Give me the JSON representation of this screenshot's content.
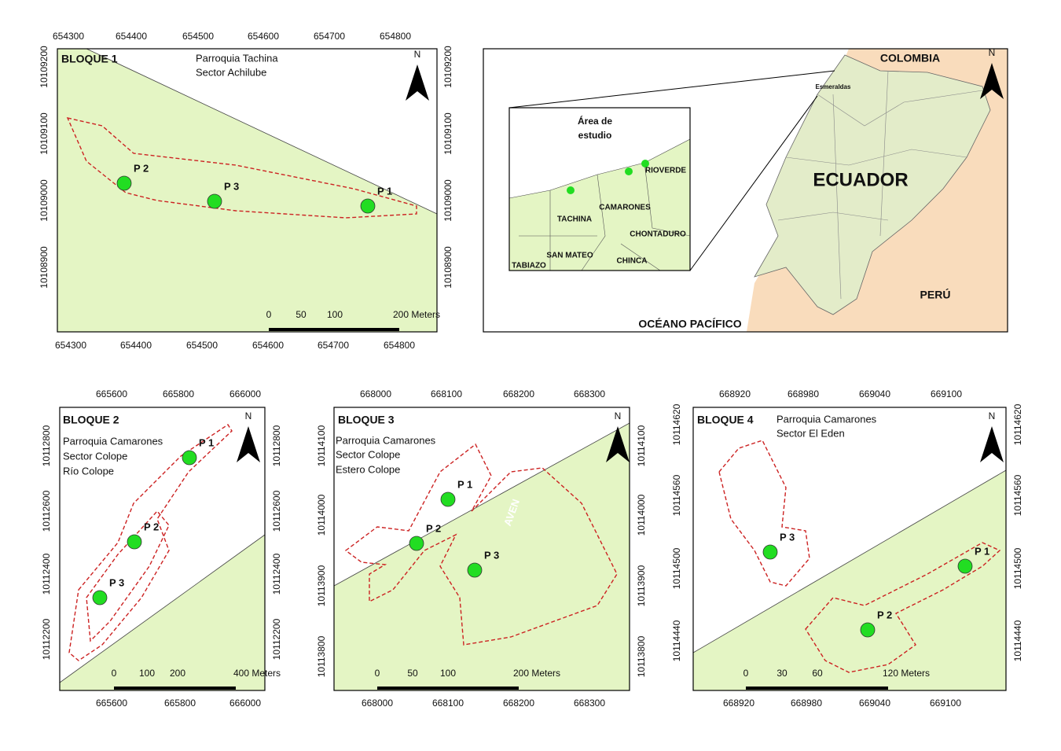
{
  "panels": [
    {
      "title": "BLOQUE 1",
      "subtitle": [
        "Parroquia Tachina",
        "Sector Achilube"
      ],
      "top_ticks": [
        654300,
        654400,
        654500,
        654600,
        654700,
        654800
      ],
      "bottom_ticks": [
        654300,
        654400,
        654500,
        654600,
        654700,
        654800
      ],
      "left_ticks": [
        10109200,
        10109100,
        10109000,
        10108900
      ],
      "right_ticks": [
        10109200,
        10109100,
        10109000,
        10108900
      ],
      "points": [
        "P 1",
        "P 2",
        "P 3"
      ],
      "scale": [
        "0",
        "50",
        "100",
        "200 Meters"
      ],
      "north": "N"
    },
    {
      "title": "BLOQUE 2",
      "subtitle": [
        "Parroquia Camarones",
        "Sector Colope",
        "Río Colope"
      ],
      "top_ticks": [
        665600,
        665800,
        666000
      ],
      "bottom_ticks": [
        665600,
        665800,
        666000
      ],
      "left_ticks": [
        10112800,
        10112600,
        10112400,
        10112200
      ],
      "right_ticks": [
        10112800,
        10112600,
        10112400,
        10112200
      ],
      "points": [
        "P 1",
        "P 2",
        "P 3"
      ],
      "scale": [
        "0",
        "100",
        "200",
        "400 Meters"
      ],
      "north": "N"
    },
    {
      "title": "BLOQUE 3",
      "subtitle": [
        "Parroquia Camarones",
        "Sector Colope",
        "Estero Colope"
      ],
      "top_ticks": [
        668000,
        668100,
        668200,
        668300
      ],
      "bottom_ticks": [
        668000,
        668100,
        668200,
        668300
      ],
      "left_ticks": [
        10114100,
        10114000,
        10113900,
        10113800
      ],
      "right_ticks": [
        10114100,
        10114000,
        10113900,
        10113800
      ],
      "points": [
        "P 1",
        "P 2",
        "P 3"
      ],
      "scale": [
        "0",
        "50",
        "100",
        "200 Meters"
      ],
      "north": "N",
      "road": "AVEN"
    },
    {
      "title": "BLOQUE 4",
      "subtitle": [
        "Parroquia Camarones",
        "Sector El Eden"
      ],
      "top_ticks": [
        668920,
        668980,
        669040,
        669100
      ],
      "bottom_ticks": [
        668920,
        668980,
        669040,
        669100
      ],
      "left_ticks": [
        10114620,
        10114560,
        10114500,
        10114440
      ],
      "right_ticks": [
        10114620,
        10114560,
        10114500,
        10114440
      ],
      "points": [
        "P 1",
        "P 2",
        "P 3"
      ],
      "scale": [
        "0",
        "30",
        "60",
        "120 Meters"
      ],
      "north": "N"
    }
  ],
  "location_map": {
    "north": "N",
    "labels": [
      "COLOMBIA",
      "Esmeraldas",
      "ECUADOR",
      "PERÚ",
      "OCÉANO PACÍFICO"
    ],
    "inset": {
      "title": [
        "Área de",
        "estudio"
      ],
      "places": [
        "RIOVERDE",
        "CAMARONES",
        "TACHINA",
        "CHONTADURO",
        "SAN MATEO",
        "CHINCA",
        "TABIAZO"
      ]
    }
  }
}
